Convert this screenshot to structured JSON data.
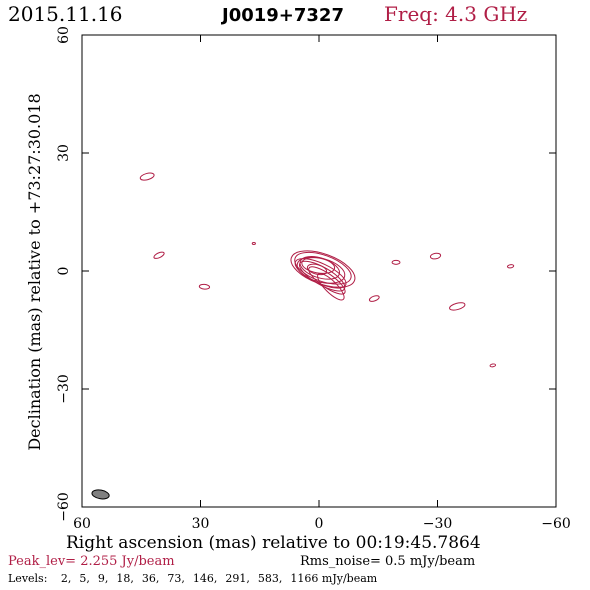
{
  "header": {
    "date": "2015.11.16",
    "source": "J0019+7327",
    "freq": "Freq: 4.3 GHz"
  },
  "footer": {
    "peak": "Peak_lev=  2.255 Jy/beam",
    "rms": "Rms_noise=  0.5 mJy/beam",
    "levels_label": "Levels:",
    "levels": [
      "2,",
      "5,",
      "9,",
      "18,",
      "36,",
      "73,",
      "146,",
      "291,",
      "583,",
      "1166 mJy/beam"
    ]
  },
  "colors": {
    "accent": "#b01e46",
    "beam": "#808080",
    "axes": "#000000"
  },
  "chart_data": {
    "type": "contour",
    "xlabel": "Right ascension (mas) relative to 00:19:45.7864",
    "ylabel": "Declination (mas) relative to +73:27:30.018",
    "xlim": [
      60,
      -60
    ],
    "ylim": [
      -60,
      60
    ],
    "xticks": [
      60,
      30,
      0,
      -30,
      -60
    ],
    "yticks": [
      60,
      30,
      0,
      -30,
      -60
    ],
    "core": [
      {
        "x": -1,
        "y": 0.5,
        "a": 8.5,
        "b": 3.8,
        "rot": 20
      },
      {
        "x": -1,
        "y": 0.7,
        "a": 7.5,
        "b": 3.3,
        "rot": 20
      },
      {
        "x": -0.5,
        "y": 0.2,
        "a": 6.2,
        "b": 3.0,
        "rot": 15
      },
      {
        "x": -0.2,
        "y": 0.8,
        "a": 5.2,
        "b": 2.5,
        "rot": 18
      },
      {
        "x": -0.4,
        "y": -0.6,
        "a": 7.0,
        "b": 2.5,
        "rot": 25
      },
      {
        "x": -0.8,
        "y": -1.3,
        "a": 6.5,
        "b": 2.2,
        "rot": 30
      },
      {
        "x": 0.2,
        "y": 1.4,
        "a": 4.2,
        "b": 1.9,
        "rot": 10
      },
      {
        "x": -2,
        "y": -2.4,
        "a": 5.5,
        "b": 1.7,
        "rot": 35
      },
      {
        "x": -3,
        "y": -4.0,
        "a": 4.5,
        "b": 1.5,
        "rot": 45
      },
      {
        "x": 0.5,
        "y": 0.4,
        "a": 2.5,
        "b": 1.2,
        "rot": 15
      }
    ],
    "components": [
      {
        "x": 43.5,
        "y": 24,
        "a": 1.8,
        "b": 0.8,
        "rot": -15
      },
      {
        "x": 40.5,
        "y": 4,
        "a": 1.4,
        "b": 0.6,
        "rot": -25
      },
      {
        "x": 29,
        "y": -4,
        "a": 1.3,
        "b": 0.6,
        "rot": 5
      },
      {
        "x": 16.5,
        "y": 7,
        "a": 0.4,
        "b": 0.25,
        "rot": 0
      },
      {
        "x": -14,
        "y": -7,
        "a": 1.3,
        "b": 0.6,
        "rot": -20
      },
      {
        "x": -19.5,
        "y": 2.2,
        "a": 1.0,
        "b": 0.5,
        "rot": 0
      },
      {
        "x": -29.5,
        "y": 3.8,
        "a": 1.3,
        "b": 0.7,
        "rot": -10
      },
      {
        "x": -35,
        "y": -9,
        "a": 2.0,
        "b": 0.8,
        "rot": -15
      },
      {
        "x": -48.5,
        "y": 1.2,
        "a": 0.8,
        "b": 0.4,
        "rot": -10
      },
      {
        "x": -44,
        "y": -24,
        "a": 0.7,
        "b": 0.35,
        "rot": -10
      }
    ],
    "beam": {
      "x": 55.3,
      "y": -56.8,
      "a": 2.2,
      "b": 1.1,
      "rot": 10
    }
  }
}
